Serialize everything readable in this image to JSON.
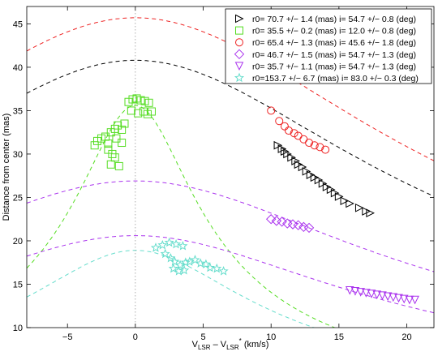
{
  "chart_data": {
    "type": "scatter",
    "title": "",
    "xlabel": {
      "base1": "V",
      "sub1": "LSR",
      "minus": " – ",
      "base2": "V",
      "sub2": "LSR",
      "sup2": "*",
      "units": " (km/s)"
    },
    "ylabel": "Distance from center (mas)",
    "xlim": [
      -8,
      22
    ],
    "ylim": [
      10,
      47
    ],
    "x_ticks": [
      -5,
      0,
      5,
      10,
      15,
      20
    ],
    "y_ticks": [
      10,
      15,
      20,
      25,
      30,
      35,
      40,
      45
    ],
    "grid": false,
    "legend_position": "top-right",
    "center_line_x": 0,
    "series": [
      {
        "name": "r0= 70.7 +/− 1.4 (mas) i= 54.7 +/− 0.8 (deg)",
        "marker": "triangle-right",
        "color": "#000000",
        "model": {
          "r0": 70.7,
          "incl_deg": 54.7,
          "peak": 40.8,
          "vscale": 17.2
        },
        "points": [
          [
            10.5,
            31.0
          ],
          [
            10.8,
            30.6
          ],
          [
            11.0,
            30.3
          ],
          [
            11.2,
            30.0
          ],
          [
            11.5,
            29.6
          ],
          [
            11.8,
            29.2
          ],
          [
            12.0,
            28.8
          ],
          [
            12.3,
            28.5
          ],
          [
            12.6,
            28.0
          ],
          [
            12.9,
            27.6
          ],
          [
            13.2,
            27.3
          ],
          [
            13.5,
            27.0
          ],
          [
            13.8,
            26.6
          ],
          [
            14.1,
            26.2
          ],
          [
            14.4,
            25.9
          ],
          [
            14.7,
            25.5
          ],
          [
            15.0,
            25.1
          ],
          [
            15.4,
            24.6
          ],
          [
            15.8,
            24.3
          ],
          [
            16.5,
            23.8
          ],
          [
            17.0,
            23.4
          ],
          [
            17.3,
            23.2
          ]
        ]
      },
      {
        "name": "r0= 35.5 +/− 0.2 (mas) i= 12.0 +/− 0.8 (deg)",
        "marker": "square",
        "color": "#55dd22",
        "model": {
          "r0": 35.5,
          "incl_deg": 12.0,
          "peak": 35.6,
          "vscale": 4.3
        },
        "points": [
          [
            -3.0,
            31.0
          ],
          [
            -2.8,
            31.5
          ],
          [
            -2.5,
            31.8
          ],
          [
            -2.2,
            32.0
          ],
          [
            -2.0,
            31.2
          ],
          [
            -1.8,
            32.5
          ],
          [
            -1.5,
            32.9
          ],
          [
            -1.3,
            33.3
          ],
          [
            -1.0,
            32.8
          ],
          [
            -0.8,
            33.5
          ],
          [
            -2.0,
            30.5
          ],
          [
            -1.7,
            30.0
          ],
          [
            -1.5,
            29.6
          ],
          [
            -1.8,
            28.8
          ],
          [
            -1.2,
            28.6
          ],
          [
            -0.5,
            36.0
          ],
          [
            -0.2,
            36.3
          ],
          [
            0.1,
            36.4
          ],
          [
            0.4,
            36.2
          ],
          [
            0.7,
            36.1
          ],
          [
            1.0,
            35.9
          ],
          [
            -0.3,
            35.0
          ],
          [
            0.2,
            34.7
          ],
          [
            0.6,
            34.9
          ],
          [
            0.9,
            34.6
          ],
          [
            1.2,
            34.9
          ],
          [
            -1.0,
            31.3
          ],
          [
            -1.4,
            31.8
          ]
        ]
      },
      {
        "name": "r0= 65.4 +/− 1.3 (mas) i= 45.6 +/− 1.8 (deg)",
        "marker": "circle",
        "color": "#ee2222",
        "model": {
          "r0": 65.4,
          "incl_deg": 45.6,
          "peak": 45.7,
          "vscale": 18.3
        },
        "points": [
          [
            10.0,
            35.0
          ],
          [
            10.6,
            33.8
          ],
          [
            11.0,
            33.2
          ],
          [
            11.3,
            32.7
          ],
          [
            11.7,
            32.4
          ],
          [
            12.0,
            32.1
          ],
          [
            12.4,
            31.7
          ],
          [
            12.8,
            31.3
          ],
          [
            13.2,
            31.0
          ],
          [
            13.6,
            30.8
          ],
          [
            14.0,
            30.5
          ]
        ]
      },
      {
        "name": "r0= 46.7 +/− 1.5 (mas) i= 54.7 +/− 1.3 (deg)",
        "marker": "diamond",
        "color": "#aa33ee",
        "model": {
          "r0": 46.7,
          "incl_deg": 54.7,
          "peak": 26.9,
          "vscale": 17.0
        },
        "points": [
          [
            10.0,
            22.5
          ],
          [
            10.4,
            22.3
          ],
          [
            10.8,
            22.2
          ],
          [
            11.2,
            22.0
          ],
          [
            11.6,
            21.9
          ],
          [
            12.0,
            21.8
          ],
          [
            12.4,
            21.6
          ],
          [
            12.8,
            21.5
          ]
        ]
      },
      {
        "name": "r0= 35.7 +/− 1.1 (mas) i= 54.7 +/− 1.3 (deg)",
        "marker": "triangle-down",
        "color": "#aa33ee",
        "model": {
          "r0": 35.7,
          "incl_deg": 54.7,
          "peak": 20.6,
          "vscale": 15.2
        },
        "points": [
          [
            15.8,
            14.3
          ],
          [
            16.2,
            14.2
          ],
          [
            16.6,
            14.1
          ],
          [
            17.0,
            14.0
          ],
          [
            17.4,
            13.9
          ],
          [
            17.8,
            13.8
          ],
          [
            18.2,
            13.7
          ],
          [
            18.6,
            13.6
          ],
          [
            19.0,
            13.5
          ],
          [
            19.4,
            13.4
          ],
          [
            19.8,
            13.3
          ],
          [
            20.2,
            13.2
          ],
          [
            20.6,
            13.2
          ]
        ]
      },
      {
        "name": "r0=153.7 +/− 6.7 (mas) i= 83.0 +/− 0.3 (deg)",
        "marker": "star",
        "color": "#66ddcc",
        "model": {
          "r0": 153.7,
          "incl_deg": 83.0,
          "peak": 18.9,
          "vscale": 8.2
        },
        "points": [
          [
            1.5,
            19.2
          ],
          [
            2.0,
            19.5
          ],
          [
            2.5,
            19.8
          ],
          [
            3.0,
            19.6
          ],
          [
            3.5,
            19.4
          ],
          [
            2.2,
            18.5
          ],
          [
            2.6,
            18.0
          ],
          [
            2.9,
            17.6
          ],
          [
            3.3,
            17.2
          ],
          [
            3.7,
            17.5
          ],
          [
            4.0,
            17.6
          ],
          [
            4.4,
            17.8
          ],
          [
            4.8,
            17.4
          ],
          [
            5.2,
            17.3
          ],
          [
            2.8,
            16.8
          ],
          [
            3.2,
            16.5
          ],
          [
            3.6,
            16.6
          ],
          [
            5.5,
            16.9
          ],
          [
            6.0,
            16.8
          ],
          [
            6.5,
            16.5
          ]
        ]
      }
    ]
  }
}
